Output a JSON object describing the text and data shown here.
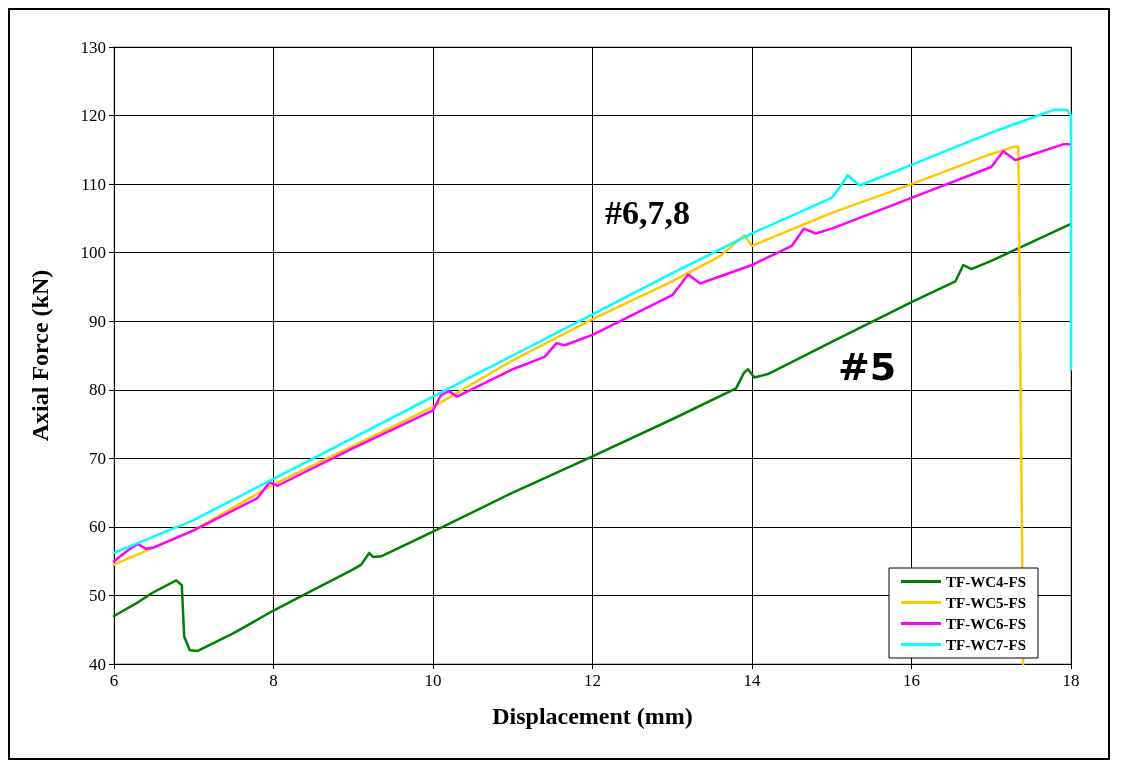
{
  "chart_data": {
    "type": "line",
    "xlabel": "Displacement (mm)",
    "ylabel": "Axial Force (kN)",
    "xlim": [
      6,
      18
    ],
    "xticks": [
      6,
      8,
      10,
      12,
      14,
      16,
      18
    ],
    "ylim": [
      40,
      130
    ],
    "yticks": [
      40,
      50,
      60,
      70,
      80,
      90,
      100,
      110,
      120,
      130
    ],
    "grid": true,
    "legend": "bottom right",
    "marker": "none",
    "line_style": "solid",
    "annotations": [
      "#6,7,8",
      "#5"
    ],
    "series": [
      {
        "name": "TF-WC4-FS",
        "color": "#008000",
        "x": [
          6,
          6.3,
          6.5,
          6.78,
          6.85,
          6.88,
          6.95,
          7.05,
          7.5,
          8,
          8.5,
          9,
          9.1,
          9.2,
          9.25,
          9.35,
          10,
          11,
          12,
          13,
          13.8,
          13.9,
          13.95,
          14.03,
          14.2,
          15,
          16,
          16.55,
          16.65,
          16.75,
          17,
          18
        ],
        "values": [
          47,
          49,
          50.5,
          52.2,
          51.5,
          44,
          42,
          41.9,
          44.5,
          47.8,
          50.8,
          53.8,
          54.5,
          56.2,
          55.6,
          55.7,
          59.3,
          65,
          70.3,
          75.7,
          80.2,
          82.5,
          83,
          81.8,
          82.3,
          87,
          92.8,
          95.8,
          98.2,
          97.6,
          98.8,
          104.2
        ]
      },
      {
        "name": "TF-WC5-FS",
        "color": "#ffc800",
        "x": [
          6,
          7,
          8,
          9,
          10,
          11,
          12,
          13,
          13.6,
          13.8,
          13.9,
          14,
          15,
          16,
          17,
          17.3,
          17.34,
          17.4
        ],
        "values": [
          54.5,
          59.5,
          66.2,
          71.8,
          77.5,
          84.3,
          90.3,
          95.8,
          99.5,
          101.5,
          102.5,
          101,
          105.8,
          110,
          114.4,
          115.5,
          115.4,
          40
        ]
      },
      {
        "name": "TF-WC6-FS",
        "color": "#ff00ff",
        "x": [
          6,
          6.2,
          6.3,
          6.4,
          6.5,
          7,
          7.8,
          7.95,
          8.05,
          9,
          10,
          10.1,
          10.2,
          10.3,
          11,
          11.4,
          11.55,
          11.65,
          12,
          13,
          13.2,
          13.35,
          14,
          14.5,
          14.65,
          14.8,
          15,
          16,
          17,
          17.15,
          17.3,
          17.9,
          18
        ],
        "values": [
          55,
          56.8,
          57.5,
          56.8,
          57,
          59.5,
          64.2,
          66.5,
          66,
          71.5,
          77,
          79.2,
          79.8,
          79,
          83,
          84.8,
          86.8,
          86.5,
          88,
          93.8,
          96.8,
          95.5,
          98.2,
          101,
          103.5,
          102.8,
          103.5,
          108,
          112.5,
          114.8,
          113.5,
          115.8,
          115.8
        ]
      },
      {
        "name": "TF-WC7-FS",
        "color": "#00ffff",
        "x": [
          6,
          7,
          8,
          9,
          10,
          11,
          12,
          13,
          14,
          15,
          15.1,
          15.2,
          15.35,
          16,
          17,
          17.8,
          17.95,
          18,
          18
        ],
        "values": [
          56.2,
          61,
          67,
          73,
          79,
          85,
          91,
          97,
          102.8,
          108,
          109.5,
          111.3,
          109.8,
          112.8,
          117.5,
          120.9,
          120.8,
          120,
          83
        ]
      }
    ]
  }
}
